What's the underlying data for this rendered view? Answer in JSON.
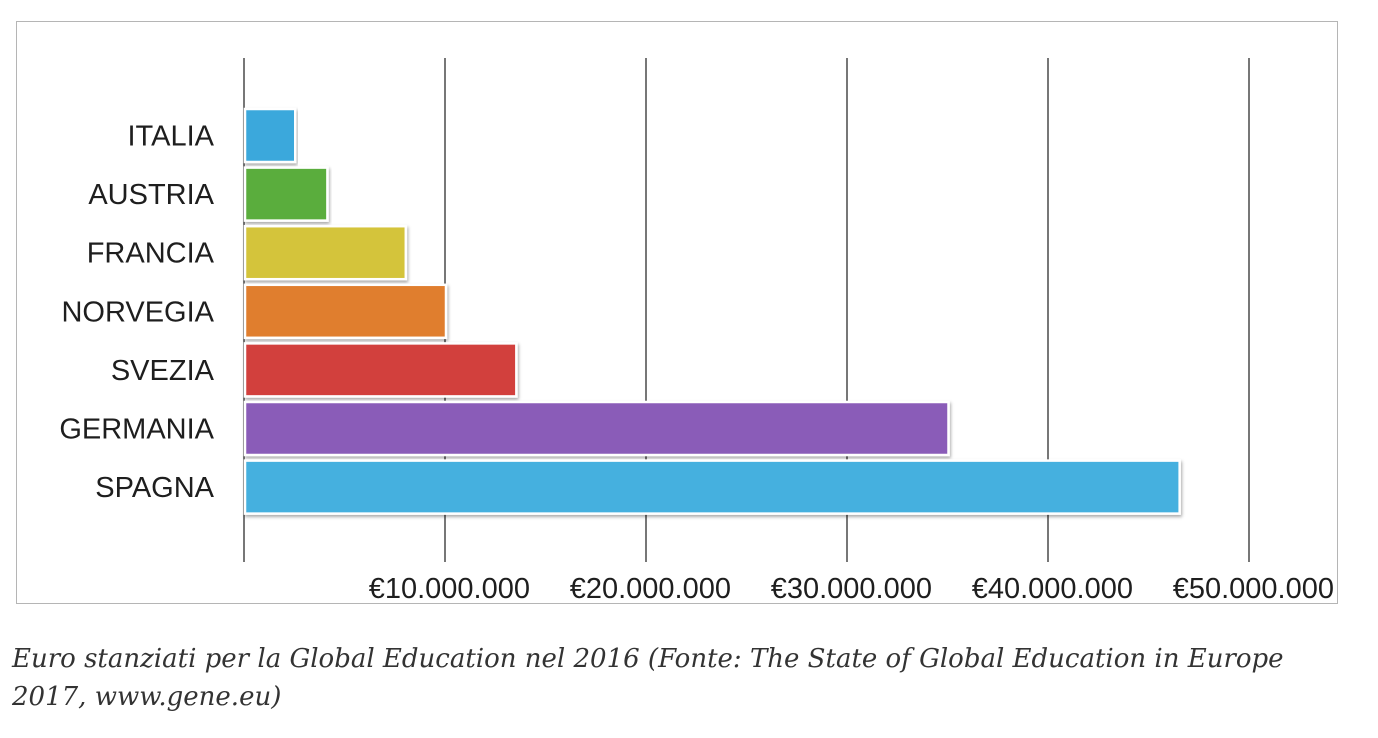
{
  "chart_data": {
    "type": "bar",
    "orientation": "horizontal",
    "categories": [
      "ITALIA",
      "AUSTRIA",
      "FRANCIA",
      "NORVEGIA",
      "SVEZIA",
      "GERMANIA",
      "SPAGNA"
    ],
    "values": [
      2500000,
      4100000,
      8000000,
      10000000,
      13500000,
      35000000,
      46500000
    ],
    "colors": [
      "#3aa8dc",
      "#5aad3e",
      "#d4c43a",
      "#e07e2f",
      "#d2413e",
      "#8a5bb8",
      "#45b0df"
    ],
    "xlim": [
      0,
      50000000
    ],
    "xticks": [
      10000000,
      20000000,
      30000000,
      40000000,
      50000000
    ],
    "xtick_labels": [
      "€10.000.000",
      "€20.000.000",
      "€30.000.000",
      "€40.000.000",
      "€50.000.000"
    ],
    "grid": true
  },
  "caption": "Euro stanziati per la Global Education nel 2016 (Fonte: The State of Global Education in Europe 2017, www.gene.eu)"
}
